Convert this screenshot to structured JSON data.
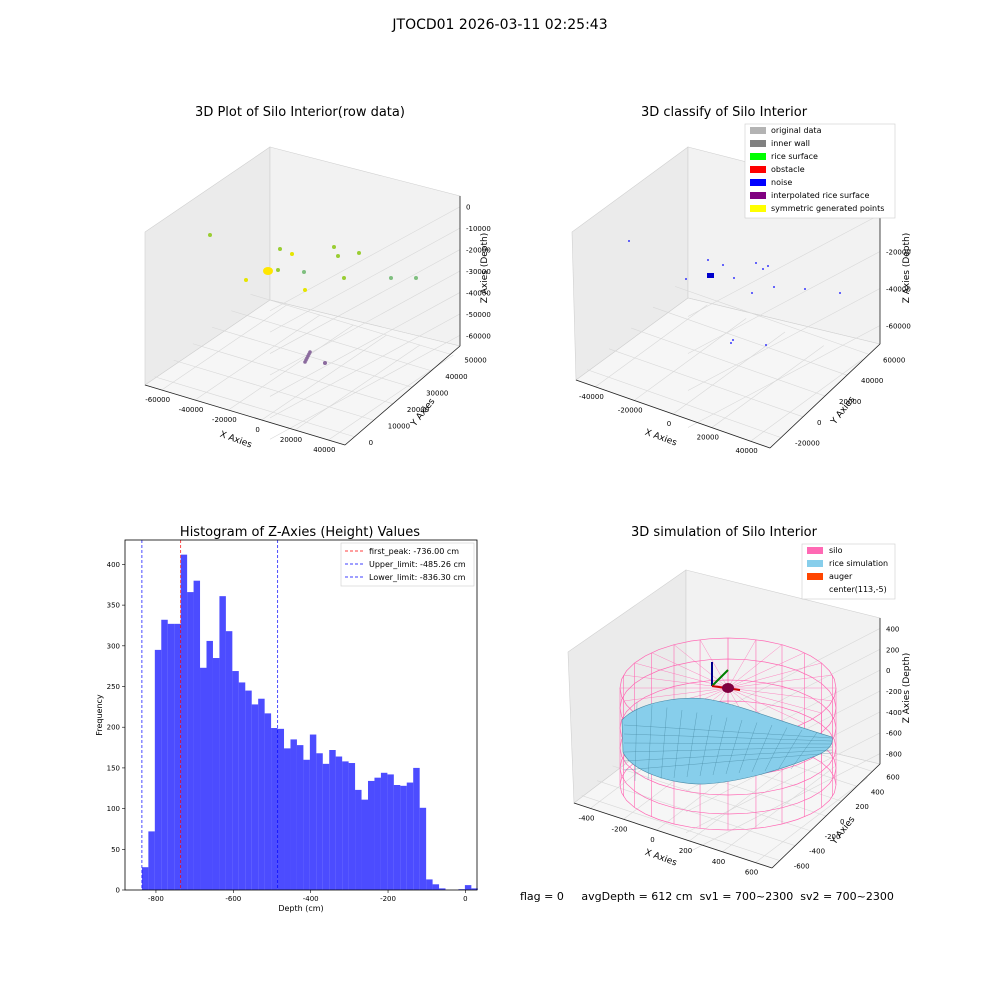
{
  "figure": {
    "suptitle": "JTOCD01 2026-03-11 02:25:43",
    "footer": {
      "flag": "flag = 0",
      "avg": "avgDepth = 612 cm",
      "sv1": "sv1 = 700~2300",
      "sv2": "sv2 = 700~2300"
    }
  },
  "chart_data": [
    {
      "type": "scatter",
      "title": "3D Plot of Silo Interior(row data)",
      "xlabel": "X Axies",
      "ylabel": "Y Axies",
      "zlabel": "Z Axies (Depth)",
      "xticks": [
        "-60000",
        "-40000",
        "-20000",
        "0",
        "20000",
        "40000"
      ],
      "yticks": [
        "0",
        "10000",
        "20000",
        "30000",
        "40000",
        "50000"
      ],
      "zticks": [
        "0",
        "-10000",
        "-20000",
        "-30000",
        "-40000",
        "-50000",
        "-60000"
      ],
      "points_colors": [
        "#9acd32",
        "#e5e500",
        "#7fbf7f",
        "#8b6b9e"
      ]
    },
    {
      "type": "scatter",
      "title": "3D classify of Silo Interior",
      "xlabel": "X Axies",
      "ylabel": "Y Axies",
      "zlabel": "Z Axies (Depth)",
      "xticks": [
        "-40000",
        "-20000",
        "0",
        "20000",
        "40000"
      ],
      "yticks": [
        "-20000",
        "0",
        "20000",
        "40000",
        "60000"
      ],
      "zticks": [
        "0",
        "-20000",
        "-40000",
        "-60000"
      ],
      "legend": [
        {
          "label": "original data",
          "color": "#b3b3b3"
        },
        {
          "label": "inner wall",
          "color": "#808080"
        },
        {
          "label": "rice surface",
          "color": "#00ff00"
        },
        {
          "label": "obstacle",
          "color": "#ff0000"
        },
        {
          "label": "noise",
          "color": "#0000ff"
        },
        {
          "label": "interpolated rice surface",
          "color": "#800080"
        },
        {
          "label": "symmetric generated points",
          "color": "#ffff00"
        }
      ]
    },
    {
      "type": "bar",
      "title": "Histogram of Z-Axies (Height) Values",
      "xlabel": "Depth (cm)",
      "ylabel": "Frequency",
      "xlim": [
        -880,
        30
      ],
      "ylim": [
        0,
        430
      ],
      "xticks": [
        -800,
        -600,
        -400,
        -200,
        0
      ],
      "yticks": [
        0,
        50,
        100,
        150,
        200,
        250,
        300,
        350,
        400
      ],
      "bin_start": -836.3,
      "bin_width": 16.7,
      "values": [
        28,
        72,
        295,
        332,
        327,
        327,
        412,
        366,
        380,
        273,
        306,
        285,
        361,
        318,
        269,
        255,
        245,
        228,
        235,
        217,
        199,
        198,
        174,
        185,
        178,
        160,
        191,
        168,
        155,
        172,
        164,
        158,
        156,
        123,
        111,
        134,
        138,
        144,
        142,
        129,
        128,
        132,
        150,
        101,
        13,
        7,
        2,
        0,
        0,
        1,
        6,
        2
      ],
      "bar_color": "#0000ff",
      "lines": [
        {
          "label": "first_peak: -736.00 cm",
          "x": -736.0,
          "color": "#ff0000"
        },
        {
          "label": "Upper_limit: -485.26 cm",
          "x": -485.26,
          "color": "#0000ff"
        },
        {
          "label": "Lower_limit: -836.30 cm",
          "x": -836.3,
          "color": "#0000ff"
        }
      ]
    },
    {
      "type": "area",
      "title": "3D simulation of Silo Interior",
      "xlabel": "X Axies",
      "ylabel": "Y Axies",
      "zlabel": "Z Axies (Depth)",
      "xticks": [
        "-400",
        "-200",
        "0",
        "200",
        "400",
        "600"
      ],
      "yticks": [
        "-600",
        "-400",
        "-200",
        "0",
        "200",
        "400",
        "600"
      ],
      "zticks": [
        "400",
        "200",
        "0",
        "-200",
        "-400",
        "-600",
        "-800"
      ],
      "legend": [
        {
          "label": "silo",
          "color": "#ff69b4"
        },
        {
          "label": "rice simulation",
          "color": "#87ceeb"
        },
        {
          "label": "auger",
          "color": "#ff4500"
        },
        {
          "label": "center(113,-5)",
          "color": ""
        }
      ]
    }
  ]
}
